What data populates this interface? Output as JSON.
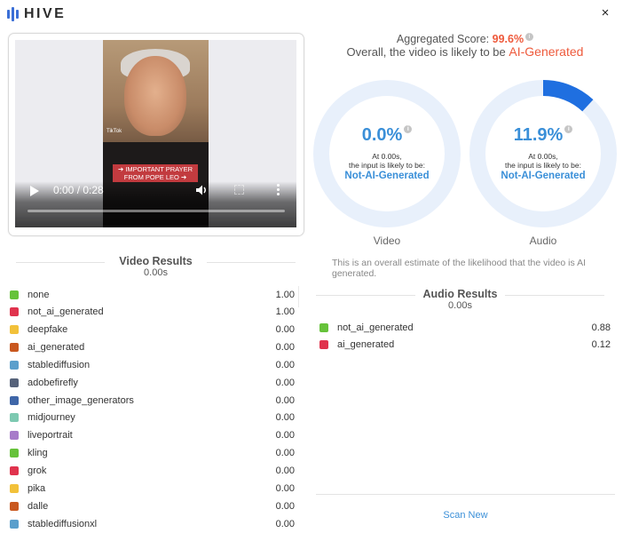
{
  "brand": {
    "name": "HIVE",
    "icon": "hive-logo-icon",
    "color": "#3b6fd6"
  },
  "close_icon": "×",
  "video_player": {
    "time": "0:00 / 0:28",
    "overlay_tag": "TikTok",
    "caption_line1": "➔ IMPORTANT PRAYER",
    "caption_line2": "FROM POPE LEO ➔"
  },
  "aggregate": {
    "label": "Aggregated Score:",
    "score": "99.6%",
    "summary_prefix": "Overall, the video is likely to be",
    "summary_verdict": "AI-Generated",
    "accent_color": "#ee5a3c"
  },
  "rings": [
    {
      "id": "video",
      "percent": "0.0%",
      "fraction": 0.0,
      "at_text": "At 0.00s,",
      "likely_text": "the input is likely to be:",
      "verdict": "Not-AI-Generated",
      "label": "Video"
    },
    {
      "id": "audio",
      "percent": "11.9%",
      "fraction": 0.119,
      "at_text": "At 0.00s,",
      "likely_text": "the input is likely to be:",
      "verdict": "Not-AI-Generated",
      "label": "Audio"
    }
  ],
  "ring_colors": {
    "track": "#e8f0fb",
    "fill": "#1f6fe0"
  },
  "overall_note": "This is an overall estimate of the likelihood that the video is AI generated.",
  "video_results": {
    "title": "Video Results",
    "time": "0.00s",
    "items": [
      {
        "label": "none",
        "value": "1.00",
        "color": "#66c23a"
      },
      {
        "label": "not_ai_generated",
        "value": "1.00",
        "color": "#e0334d"
      },
      {
        "label": "deepfake",
        "value": "0.00",
        "color": "#f2c13a"
      },
      {
        "label": "ai_generated",
        "value": "0.00",
        "color": "#c9581f"
      },
      {
        "label": "stablediffusion",
        "value": "0.00",
        "color": "#5b9fcc"
      },
      {
        "label": "adobefirefly",
        "value": "0.00",
        "color": "#56627a"
      },
      {
        "label": "other_image_generators",
        "value": "0.00",
        "color": "#3f66a8"
      },
      {
        "label": "midjourney",
        "value": "0.00",
        "color": "#7dc9b1"
      },
      {
        "label": "liveportrait",
        "value": "0.00",
        "color": "#a77bc9"
      },
      {
        "label": "kling",
        "value": "0.00",
        "color": "#66c23a"
      },
      {
        "label": "grok",
        "value": "0.00",
        "color": "#e0334d"
      },
      {
        "label": "pika",
        "value": "0.00",
        "color": "#f2c13a"
      },
      {
        "label": "dalle",
        "value": "0.00",
        "color": "#c9581f"
      },
      {
        "label": "stablediffusionxl",
        "value": "0.00",
        "color": "#5b9fcc"
      }
    ]
  },
  "audio_results": {
    "title": "Audio Results",
    "time": "0.00s",
    "items": [
      {
        "label": "not_ai_generated",
        "value": "0.88",
        "color": "#66c23a"
      },
      {
        "label": "ai_generated",
        "value": "0.12",
        "color": "#e0334d"
      }
    ]
  },
  "scan_new_label": "Scan New"
}
